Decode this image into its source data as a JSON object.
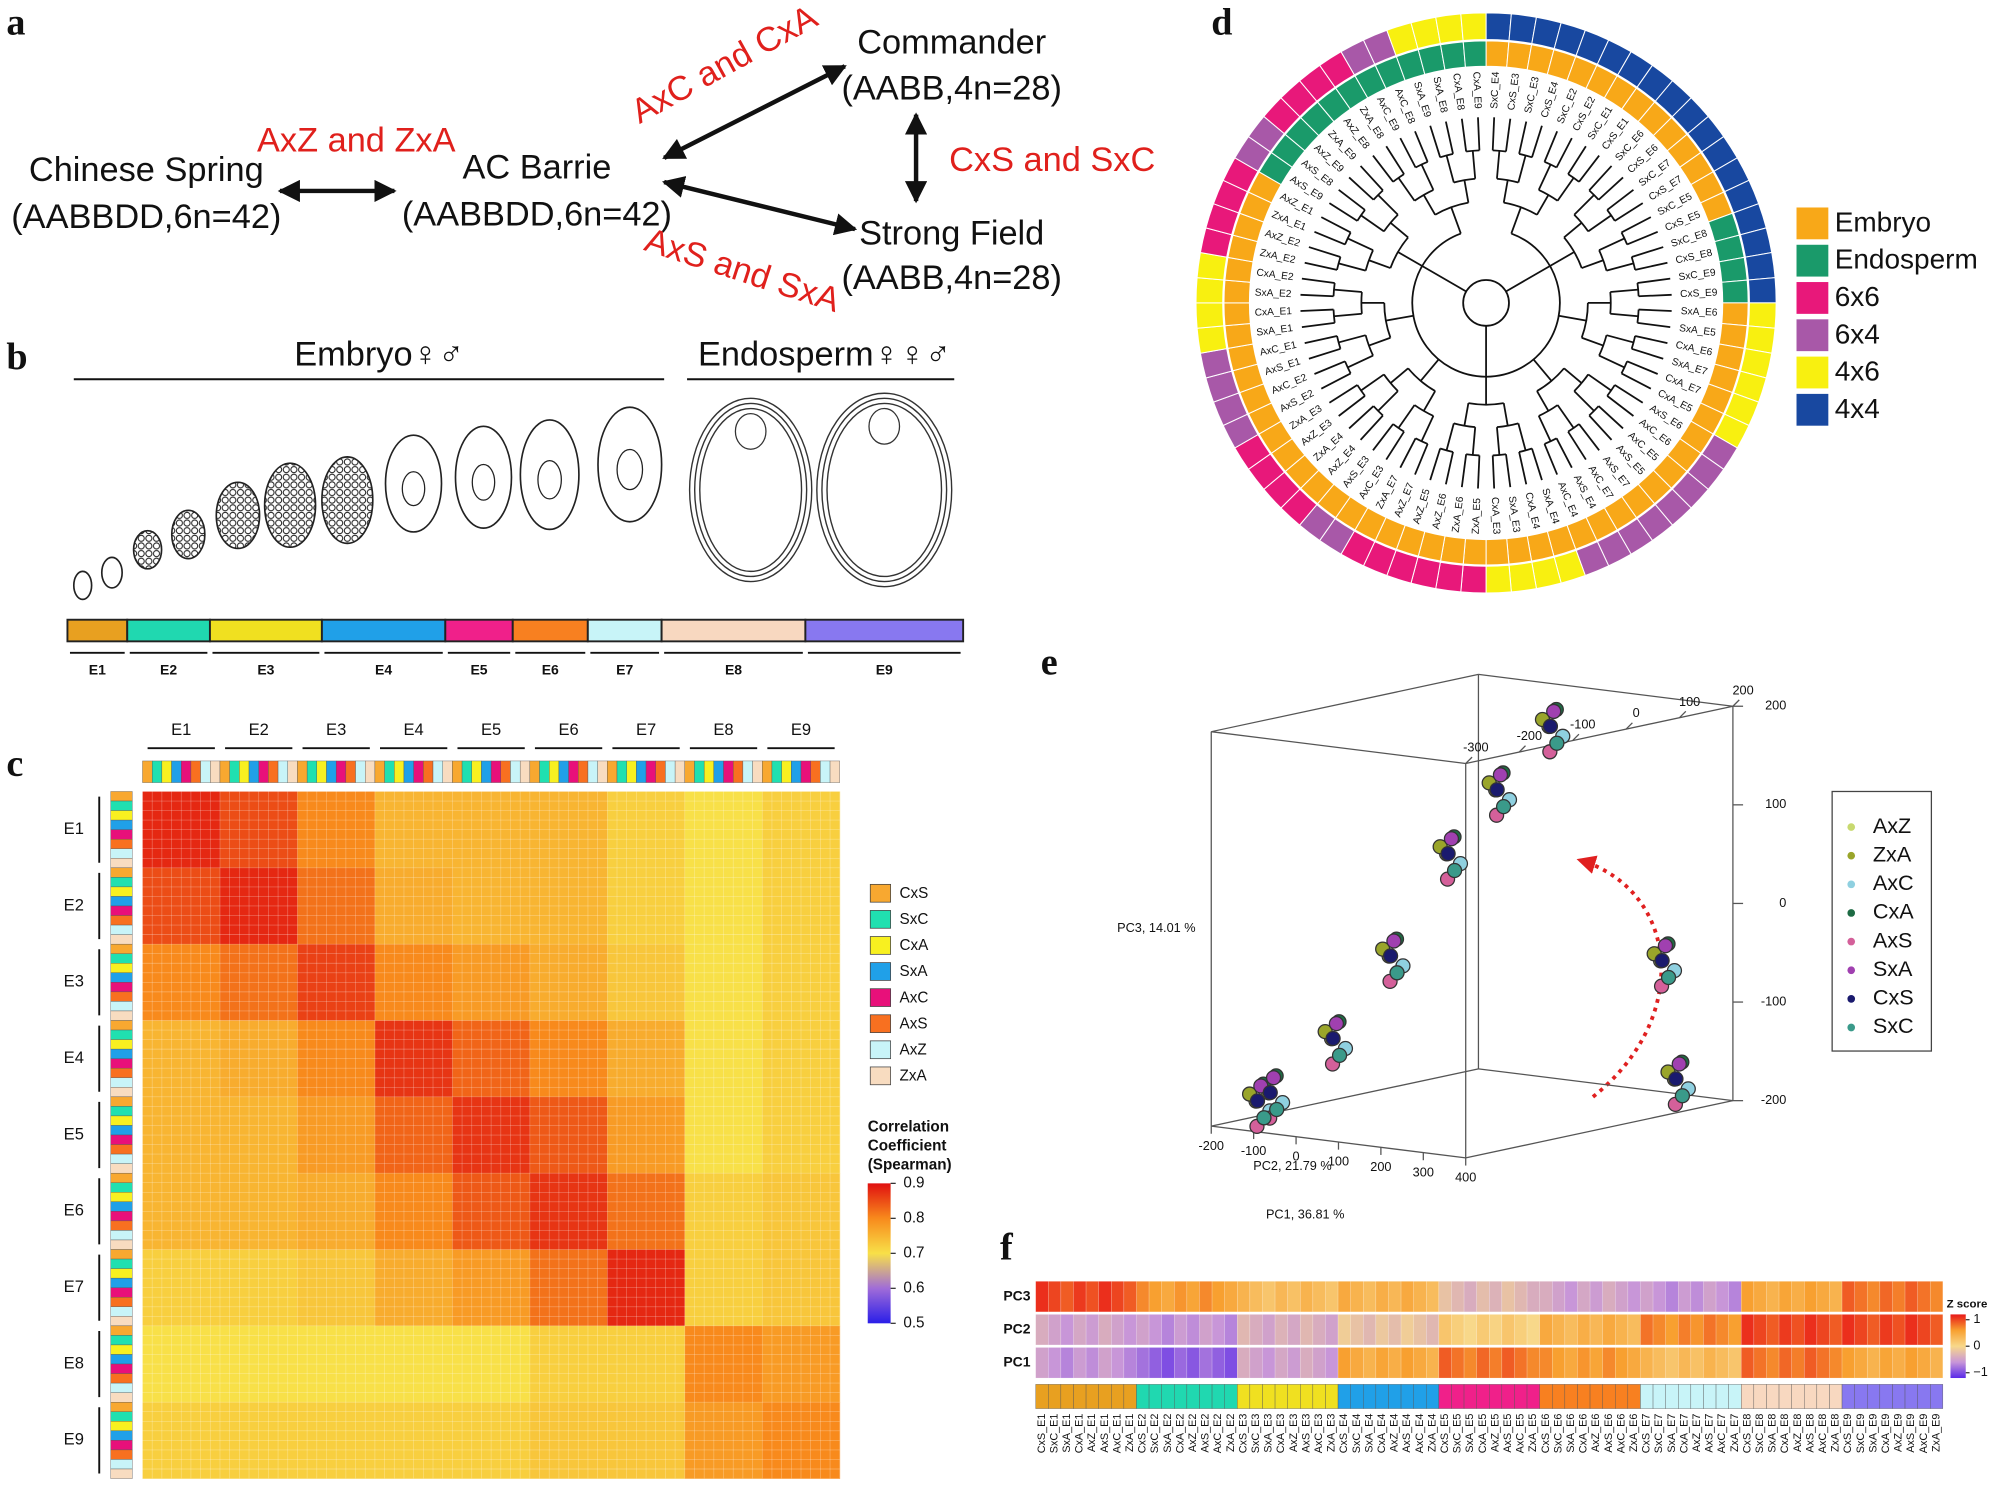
{
  "panel_labels": [
    "a",
    "b",
    "c",
    "d",
    "e",
    "f"
  ],
  "panel_a": {
    "nodes": [
      {
        "name": "Chinese Spring",
        "genome": "(AABBDD,6n=42)"
      },
      {
        "name": "AC Barrie",
        "genome": "(AABBDD,6n=42)"
      },
      {
        "name": "Commander",
        "genome": "(AABB,4n=28)"
      },
      {
        "name": "Strong Field",
        "genome": "(AABB,4n=28)"
      }
    ],
    "crosses": [
      "AxZ and ZxA",
      "AxC and CxA",
      "CxS and SxC",
      "AxS and SxA"
    ]
  },
  "panel_b": {
    "embryo_label": "Embryo♀♂",
    "endosperm_label": "Endosperm♀♀♂"
  },
  "stages": {
    "names": [
      "E1",
      "E2",
      "E3",
      "E4",
      "E5",
      "E6",
      "E7",
      "E8",
      "E9"
    ],
    "colors": [
      "#e8a020",
      "#20d8b0",
      "#f0e020",
      "#20a0e8",
      "#f0208a",
      "#f88020",
      "#c8f4f8",
      "#f8d8c0",
      "#8878f0"
    ]
  },
  "chart_data": [
    {
      "type": "heatmap",
      "series": [
        {
          "name": "CxS",
          "color": "#f8a830"
        },
        {
          "name": "SxC",
          "color": "#20e0b0"
        },
        {
          "name": "CxA",
          "color": "#f8f020"
        },
        {
          "name": "SxA",
          "color": "#20a0e8"
        },
        {
          "name": "AxC",
          "color": "#e8107a"
        },
        {
          "name": "AxS",
          "color": "#f87020"
        },
        {
          "name": "AxZ",
          "color": "#c8f4f8"
        },
        {
          "name": "ZxA",
          "color": "#f8dcc0"
        }
      ],
      "values": [
        [
          0.88,
          0.85,
          0.8,
          0.75,
          0.75,
          0.75,
          0.72,
          0.7,
          0.72
        ],
        [
          0.85,
          0.88,
          0.82,
          0.76,
          0.75,
          0.75,
          0.72,
          0.7,
          0.72
        ],
        [
          0.8,
          0.82,
          0.86,
          0.8,
          0.78,
          0.76,
          0.73,
          0.7,
          0.72
        ],
        [
          0.75,
          0.76,
          0.8,
          0.87,
          0.83,
          0.8,
          0.76,
          0.7,
          0.72
        ],
        [
          0.75,
          0.75,
          0.78,
          0.83,
          0.87,
          0.84,
          0.78,
          0.7,
          0.72
        ],
        [
          0.75,
          0.75,
          0.76,
          0.8,
          0.84,
          0.87,
          0.82,
          0.72,
          0.73
        ],
        [
          0.72,
          0.72,
          0.73,
          0.76,
          0.78,
          0.82,
          0.88,
          0.72,
          0.73
        ],
        [
          0.7,
          0.7,
          0.7,
          0.7,
          0.7,
          0.72,
          0.72,
          0.8,
          0.78
        ],
        [
          0.72,
          0.72,
          0.72,
          0.72,
          0.72,
          0.73,
          0.73,
          0.78,
          0.8
        ]
      ],
      "clim": [
        0.5,
        0.9
      ],
      "cticks": [
        0.5,
        0.6,
        0.7,
        0.8,
        0.9
      ],
      "colormap": [
        "#2a1ee8",
        "#a06cd8",
        "#f8e048",
        "#f88a1c",
        "#e01010"
      ],
      "colorbar_title": [
        "Correlation",
        "Coefficient",
        "(Spearman)"
      ]
    },
    {
      "type": "dendrogram",
      "leaves": [
        "SxC_E4",
        "CxS_E3",
        "SxC_E3",
        "CxS_E4",
        "SxC_E2",
        "CxS_E2",
        "SxC_E1",
        "CxS_E1",
        "SxC_E6",
        "CxS_E6",
        "SxC_E7",
        "CxS_E7",
        "SxC_E5",
        "CxS_E5",
        "SxC_E8",
        "CxS_E8",
        "SxC_E9",
        "CxS_E9",
        "SxA_E6",
        "SxA_E5",
        "CxA_E6",
        "SxA_E7",
        "CxA_E7",
        "CxA_E5",
        "AxS_E6",
        "AxC_E6",
        "AxC_E5",
        "AxS_E5",
        "AxS_E7",
        "AxC_E7",
        "AxS_E4",
        "AxC_E4",
        "SxA_E4",
        "CxA_E4",
        "SxA_E3",
        "CxA_E3",
        "ZxA_E5",
        "ZxA_E6",
        "AxZ_E6",
        "AxZ_E5",
        "AxZ_E7",
        "ZxA_E7",
        "AxC_E3",
        "AxS_E3",
        "AxZ_E4",
        "ZxA_E4",
        "AxZ_E3",
        "ZxA_E3",
        "AxS_E2",
        "AxC_E2",
        "AxS_E1",
        "AxC_E1",
        "SxA_E1",
        "CxA_E1",
        "SxA_E2",
        "CxA_E2",
        "ZxA_E2",
        "AxZ_E2",
        "ZxA_E1",
        "AxZ_E1",
        "AxS_E9",
        "AxS_E8",
        "AxZ_E9",
        "ZxA_E9",
        "AxZ_E8",
        "ZxA_E8",
        "AxC_E9",
        "AxC_E8",
        "SxA_E9",
        "SxA_E8",
        "CxA_E8",
        "CxA_E9"
      ],
      "tissue": [
        0,
        0,
        0,
        0,
        0,
        0,
        0,
        0,
        0,
        0,
        0,
        0,
        0,
        0,
        1,
        1,
        1,
        1,
        0,
        0,
        0,
        0,
        0,
        0,
        0,
        0,
        0,
        0,
        0,
        0,
        0,
        0,
        0,
        0,
        0,
        0,
        0,
        0,
        0,
        0,
        0,
        0,
        0,
        0,
        0,
        0,
        0,
        0,
        0,
        0,
        0,
        0,
        0,
        0,
        0,
        0,
        0,
        0,
        0,
        0,
        1,
        1,
        1,
        1,
        1,
        1,
        1,
        1,
        1,
        1,
        1,
        1
      ],
      "ploidy": [
        5,
        5,
        5,
        5,
        5,
        5,
        5,
        5,
        5,
        5,
        5,
        5,
        5,
        5,
        5,
        5,
        5,
        5,
        4,
        4,
        4,
        4,
        4,
        4,
        3,
        3,
        3,
        3,
        3,
        3,
        3,
        3,
        4,
        4,
        4,
        4,
        2,
        2,
        2,
        2,
        2,
        2,
        3,
        3,
        2,
        2,
        2,
        2,
        3,
        3,
        3,
        3,
        4,
        4,
        4,
        4,
        2,
        2,
        2,
        2,
        3,
        3,
        2,
        2,
        2,
        2,
        3,
        3,
        4,
        4,
        4,
        4
      ],
      "legend": [
        {
          "name": "Embryo",
          "color": "#f8a818"
        },
        {
          "name": "Endosperm",
          "color": "#1a9a6a"
        },
        {
          "name": "6x6",
          "color": "#e8187a"
        },
        {
          "name": "6x4",
          "color": "#a858a8"
        },
        {
          "name": "4x6",
          "color": "#f8f010"
        },
        {
          "name": "4x4",
          "color": "#1848a0"
        }
      ]
    },
    {
      "type": "scatter3d",
      "xlabel": "PC1, 36.81 %",
      "ylabel": "PC2, 21.79 %",
      "zlabel": "PC3, 14.01 %",
      "xlim": [
        -200,
        400
      ],
      "ylim": [
        -300,
        200
      ],
      "zlim": [
        -200,
        200
      ],
      "xticks": [
        -200,
        -100,
        0,
        100,
        200,
        300,
        400
      ],
      "yticks": [
        -300,
        -200,
        -100,
        0,
        100,
        200
      ],
      "zticks": [
        -200,
        -100,
        0,
        100,
        200
      ],
      "series": [
        {
          "name": "AxZ",
          "color": "#c8d96f",
          "x": [
            -170,
            -140,
            -80,
            -20,
            40,
            80,
            130,
            280,
            300
          ],
          "y": [
            -240,
            -240,
            -170,
            -110,
            -50,
            10,
            70,
            160,
            170
          ],
          "z": [
            -180,
            -170,
            -120,
            -40,
            60,
            120,
            180,
            -60,
            -180
          ]
        },
        {
          "name": "ZxA",
          "color": "#9aa52a",
          "x": [
            -160,
            -130,
            -70,
            -10,
            50,
            90,
            140,
            290,
            310
          ],
          "y": [
            -260,
            -260,
            -190,
            -130,
            -70,
            -10,
            50,
            140,
            150
          ],
          "z": [
            -170,
            -160,
            -110,
            -30,
            70,
            130,
            190,
            -50,
            -170
          ]
        },
        {
          "name": "AxC",
          "color": "#8fd0e0",
          "x": [
            -150,
            -120,
            -60,
            0,
            60,
            100,
            150,
            300,
            320
          ],
          "y": [
            -230,
            -230,
            -160,
            -100,
            -40,
            20,
            80,
            170,
            180
          ],
          "z": [
            -190,
            -180,
            -130,
            -50,
            50,
            110,
            170,
            -70,
            -190
          ]
        },
        {
          "name": "CxA",
          "color": "#1e6b44",
          "x": [
            -140,
            -110,
            -50,
            10,
            70,
            110,
            160,
            310,
            330
          ],
          "y": [
            -250,
            -250,
            -180,
            -120,
            -60,
            0,
            60,
            150,
            160
          ],
          "z": [
            -160,
            -150,
            -100,
            -20,
            80,
            140,
            200,
            -40,
            -160
          ]
        },
        {
          "name": "AxS",
          "color": "#d4609a",
          "x": [
            -130,
            -100,
            -40,
            20,
            80,
            120,
            170,
            320,
            340
          ],
          "y": [
            -270,
            -270,
            -200,
            -140,
            -80,
            -20,
            40,
            130,
            140
          ],
          "z": [
            -200,
            -190,
            -140,
            -60,
            40,
            100,
            160,
            -80,
            -200
          ]
        },
        {
          "name": "SxA",
          "color": "#a040b0",
          "x": [
            -165,
            -135,
            -75,
            -15,
            45,
            85,
            135,
            285,
            305
          ],
          "y": [
            -235,
            -235,
            -165,
            -105,
            -45,
            15,
            75,
            165,
            175
          ],
          "z": [
            -165,
            -155,
            -105,
            -25,
            75,
            135,
            195,
            -45,
            -165
          ]
        },
        {
          "name": "CxS",
          "color": "#1a1a6e",
          "x": [
            -135,
            -105,
            -45,
            15,
            75,
            115,
            165,
            315,
            335
          ],
          "y": [
            -265,
            -265,
            -195,
            -135,
            -75,
            -15,
            45,
            135,
            145
          ],
          "z": [
            -175,
            -165,
            -115,
            -35,
            65,
            125,
            185,
            -55,
            -175
          ]
        },
        {
          "name": "SxC",
          "color": "#3a9a8a",
          "x": [
            -145,
            -115,
            -55,
            5,
            65,
            105,
            155,
            305,
            325
          ],
          "y": [
            -245,
            -245,
            -175,
            -115,
            -55,
            5,
            65,
            155,
            165
          ],
          "z": [
            -195,
            -185,
            -135,
            -55,
            45,
            105,
            165,
            -75,
            -195
          ]
        }
      ]
    },
    {
      "type": "heatmap",
      "rows": [
        "PC3",
        "PC2",
        "PC1"
      ],
      "columns": [
        "CxS_E1",
        "SxC_E1",
        "SxA_E1",
        "CxA_E1",
        "AxZ_E1",
        "AxS_E1",
        "AxC_E1",
        "ZxA_E1",
        "CxS_E2",
        "SxC_E2",
        "SxA_E2",
        "CxA_E2",
        "AxZ_E2",
        "AxS_E2",
        "AxC_E2",
        "ZxA_E2",
        "CxS_E3",
        "SxC_E3",
        "SxA_E3",
        "CxA_E3",
        "AxZ_E3",
        "AxS_E3",
        "AxC_E3",
        "ZxA_E3",
        "CxS_E4",
        "SxC_E4",
        "SxA_E4",
        "CxA_E4",
        "AxZ_E4",
        "AxS_E4",
        "AxC_E4",
        "ZxA_E4",
        "CxS_E5",
        "SxC_E5",
        "SxA_E5",
        "CxA_E5",
        "AxZ_E5",
        "AxS_E5",
        "AxC_E5",
        "ZxA_E5",
        "CxS_E6",
        "SxC_E6",
        "SxA_E6",
        "CxA_E6",
        "AxZ_E6",
        "AxS_E6",
        "AxC_E6",
        "ZxA_E6",
        "CxS_E7",
        "SxC_E7",
        "SxA_E7",
        "CxA_E7",
        "AxZ_E7",
        "AxS_E7",
        "AxC_E7",
        "ZxA_E7",
        "CxS_E8",
        "SxC_E8",
        "SxA_E8",
        "CxA_E8",
        "AxZ_E8",
        "AxS_E8",
        "AxC_E8",
        "ZxA_E8",
        "CxS_E9",
        "SxC_E9",
        "SxA_E9",
        "CxA_E9",
        "AxZ_E9",
        "AxS_E9",
        "AxC_E9",
        "ZxA_E9"
      ],
      "values": [
        [
          1.1,
          1.0,
          0.9,
          1.05,
          0.95,
          1.1,
          1.0,
          0.9,
          0.7,
          0.6,
          0.5,
          0.65,
          0.55,
          0.7,
          0.6,
          0.5,
          0.4,
          0.3,
          0.2,
          0.35,
          0.25,
          0.4,
          0.3,
          0.2,
          0.5,
          0.4,
          0.3,
          0.45,
          0.35,
          0.5,
          0.4,
          0.3,
          -0.2,
          -0.3,
          -0.4,
          -0.25,
          -0.35,
          -0.2,
          -0.3,
          -0.4,
          -0.4,
          -0.5,
          -0.6,
          -0.45,
          -0.55,
          -0.4,
          -0.5,
          -0.6,
          -0.5,
          -0.6,
          -0.7,
          -0.55,
          -0.65,
          -0.5,
          -0.6,
          -0.7,
          0.6,
          0.5,
          0.4,
          0.55,
          0.45,
          0.6,
          0.5,
          0.4,
          0.9,
          0.8,
          0.7,
          0.85,
          0.75,
          0.9,
          0.8,
          0.7
        ],
        [
          -0.4,
          -0.5,
          -0.6,
          -0.45,
          -0.55,
          -0.4,
          -0.5,
          -0.6,
          -0.5,
          -0.6,
          -0.7,
          -0.55,
          -0.65,
          -0.5,
          -0.6,
          -0.7,
          -0.3,
          -0.4,
          -0.5,
          -0.35,
          -0.45,
          -0.3,
          -0.4,
          -0.5,
          -0.1,
          -0.2,
          -0.3,
          -0.15,
          -0.25,
          -0.1,
          -0.2,
          -0.3,
          0.2,
          0.1,
          0,
          0.15,
          0.05,
          0.2,
          0.1,
          0,
          0.5,
          0.4,
          0.3,
          0.45,
          0.35,
          0.5,
          0.4,
          0.3,
          0.8,
          0.7,
          0.6,
          0.75,
          0.65,
          0.8,
          0.7,
          0.6,
          1.1,
          1.0,
          0.9,
          1.05,
          0.95,
          1.1,
          1.0,
          0.9,
          1.1,
          1.0,
          0.9,
          1.05,
          0.95,
          1.1,
          1.0,
          0.9
        ],
        [
          -0.5,
          -0.6,
          -0.7,
          -0.55,
          -0.65,
          -0.5,
          -0.6,
          -0.7,
          -0.8,
          -0.9,
          -1.0,
          -0.85,
          -0.95,
          -0.8,
          -0.9,
          -1.0,
          -0.4,
          -0.5,
          -0.6,
          -0.45,
          -0.55,
          -0.4,
          -0.5,
          -0.6,
          0.6,
          0.5,
          0.4,
          0.55,
          0.45,
          0.6,
          0.5,
          0.4,
          0.9,
          0.8,
          0.7,
          0.85,
          0.75,
          0.9,
          0.8,
          0.7,
          0.7,
          0.6,
          0.5,
          0.65,
          0.55,
          0.7,
          0.6,
          0.5,
          0.4,
          0.3,
          0.2,
          0.35,
          0.25,
          0.4,
          0.3,
          0.2,
          0.9,
          0.8,
          0.7,
          0.85,
          0.75,
          0.9,
          0.8,
          0.7,
          0.6,
          0.5,
          0.4,
          0.55,
          0.45,
          0.6,
          0.5,
          0.4
        ]
      ],
      "clim": [
        -1.2,
        1.2
      ],
      "cticks": [
        {
          "value": -1,
          "label": "−1"
        },
        0,
        1
      ],
      "colormap": [
        "#5a2ae8",
        "#c896d8",
        "#f8d88a",
        "#f8a030",
        "#e81818"
      ],
      "colorbar_title": "Z score"
    }
  ]
}
